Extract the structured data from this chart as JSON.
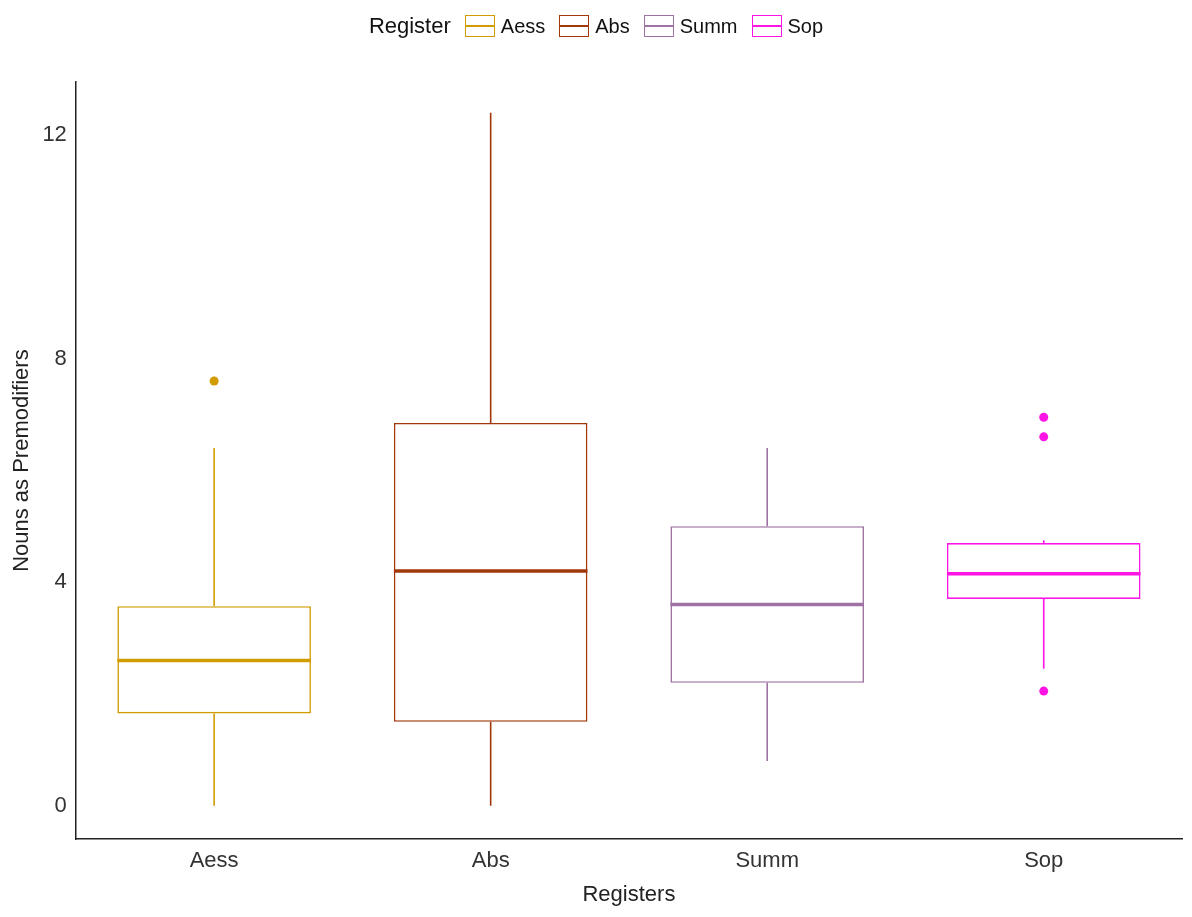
{
  "chart_data": {
    "type": "box",
    "xlabel": "Registers",
    "ylabel": "Nouns as Premodifiers",
    "legend_title": "Register",
    "legend": "top",
    "categories": [
      "Aess",
      "Abs",
      "Summ",
      "Sop"
    ],
    "ylim": [
      -0.6,
      12.95
    ],
    "yticks": [
      0,
      4,
      8,
      12
    ],
    "series": [
      {
        "name": "Aess",
        "color": "#d19c00",
        "boxes": [
          {
            "low": 0,
            "q1": 1.65,
            "median": 2.6,
            "q3": 3.57,
            "high": 6.4,
            "outliers": [
              7.6
            ]
          },
          null,
          null,
          null
        ]
      },
      {
        "name": "Abs",
        "color": "#a0380a",
        "boxes": [
          null,
          {
            "low": 0,
            "q1": 1.5,
            "median": 4.2,
            "q3": 6.85,
            "high": 12.4
          },
          null,
          null
        ]
      },
      {
        "name": "Summ",
        "color": "#9e72a2",
        "boxes": [
          null,
          null,
          {
            "low": 0.8,
            "q1": 2.2,
            "median": 3.6,
            "q3": 5.0,
            "high": 6.4
          },
          null
        ]
      },
      {
        "name": "Sop",
        "color": "#ff14e6",
        "boxes": [
          null,
          null,
          null,
          {
            "low": 2.45,
            "q1": 3.7,
            "median": 4.15,
            "q3": 4.7,
            "high": 4.75,
            "outliers": [
              2.05,
              6.6,
              6.95
            ]
          }
        ]
      }
    ]
  }
}
